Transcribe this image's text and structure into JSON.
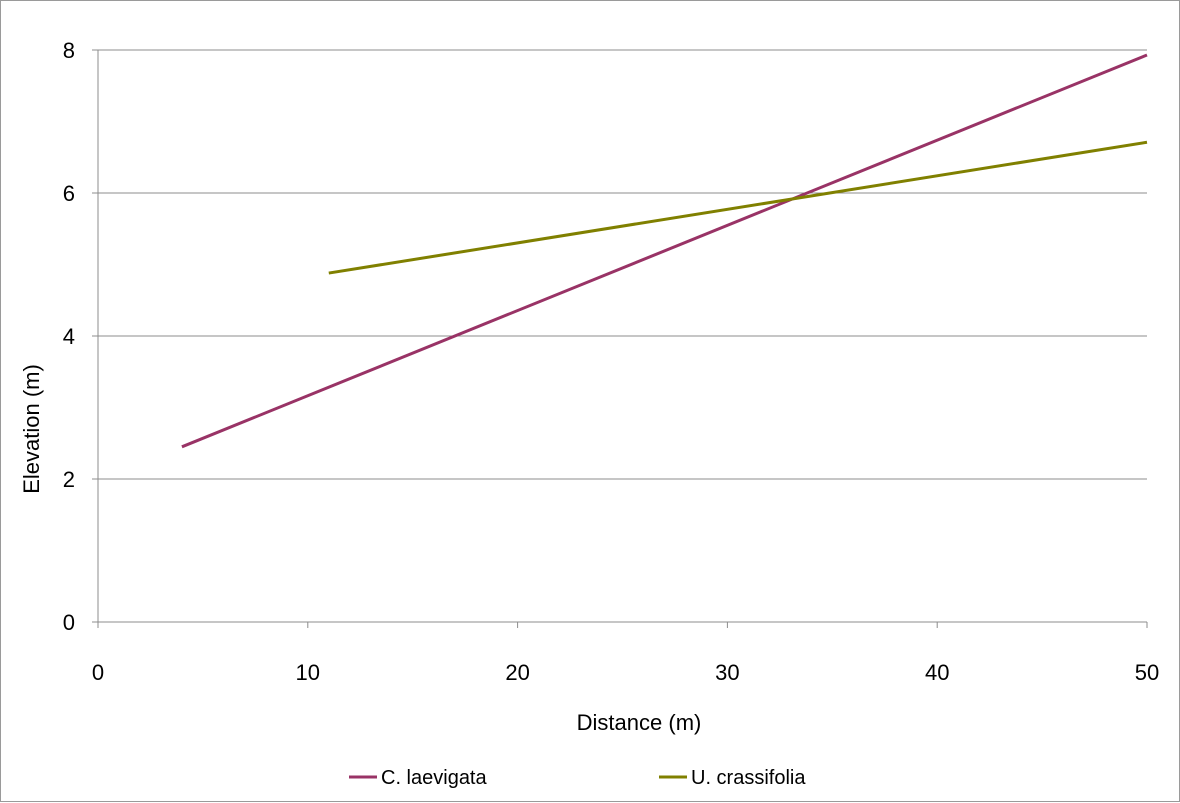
{
  "chart_data": {
    "type": "line",
    "title": "",
    "xlabel": "Distance (m)",
    "ylabel": "Elevation (m)",
    "xlim": [
      0,
      50
    ],
    "ylim": [
      0,
      8
    ],
    "x_ticks": [
      0,
      10,
      20,
      30,
      40,
      50
    ],
    "y_ticks": [
      0,
      2,
      4,
      6,
      8
    ],
    "x_tick_labels": [
      "0",
      "10",
      "20",
      "30",
      "40",
      "50"
    ],
    "y_tick_labels": [
      "0",
      "2",
      "4",
      "6",
      "8"
    ],
    "grid": "horizontal",
    "legend_position": "bottom",
    "series": [
      {
        "name": "C. laevigata",
        "color": "#993366",
        "x": [
          4,
          50
        ],
        "y": [
          2.45,
          7.93
        ]
      },
      {
        "name": "U. crassifolia",
        "color": "#808000",
        "x": [
          11,
          50
        ],
        "y": [
          4.88,
          6.71
        ]
      }
    ]
  }
}
